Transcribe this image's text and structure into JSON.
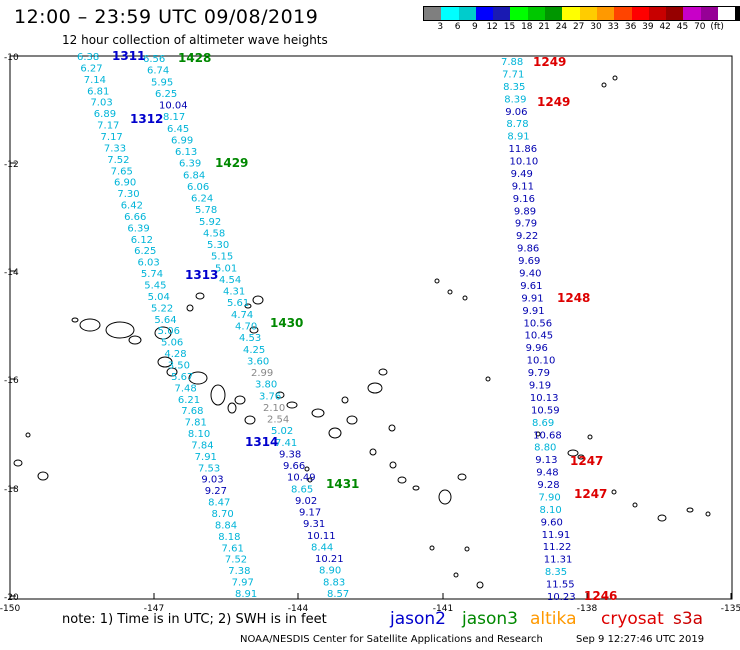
{
  "header": {
    "title": "12:00 – 23:59 UTC 09/08/2019",
    "subtitle": "12 hour collection of altimeter wave heights"
  },
  "scale": {
    "colors": [
      "#7f7f7f",
      "#00ffff",
      "#00cccc",
      "#0000ff",
      "#1a1ab2",
      "#00ff00",
      "#00c800",
      "#009600",
      "#ffff00",
      "#ffcc00",
      "#ff9900",
      "#ff4400",
      "#ff0000",
      "#c80000",
      "#960000",
      "#c800c8",
      "#960096",
      "#ffffff",
      "#000000"
    ],
    "labels": [
      "3",
      "6",
      "9",
      "12",
      "15",
      "18",
      "21",
      "24",
      "27",
      "30",
      "33",
      "36",
      "39",
      "42",
      "45",
      "70",
      "(ft)"
    ]
  },
  "map": {
    "lon_labels": [
      "-150",
      "-147",
      "-144",
      "-141",
      "-138",
      "-135"
    ],
    "lat_labels": [
      "-10",
      "-12",
      "-14",
      "-16",
      "-18",
      "-20"
    ]
  },
  "passes": [
    {
      "id": "1311",
      "sat": "jason2"
    },
    {
      "id": "1312",
      "sat": "jason2"
    },
    {
      "id": "1313",
      "sat": "jason2"
    },
    {
      "id": "1314",
      "sat": "jason2"
    },
    {
      "id": "1428",
      "sat": "jason3"
    },
    {
      "id": "1429",
      "sat": "jason3"
    },
    {
      "id": "1430",
      "sat": "jason3"
    },
    {
      "id": "1431",
      "sat": "jason3"
    },
    {
      "id": "1249",
      "sat": "cryosat"
    },
    {
      "id": "1248",
      "sat": "cryosat"
    },
    {
      "id": "1247",
      "sat": "cryosat"
    },
    {
      "id": "1246",
      "sat": "cryosat"
    }
  ],
  "tracks": {
    "a": [
      "6.38",
      "6.27",
      "7.14",
      "6.81",
      "7.03",
      "6.89",
      "7.17",
      "7.17",
      "7.33",
      "7.52",
      "7.65",
      "6.90",
      "7.30",
      "6.42",
      "6.66",
      "6.39",
      "6.12",
      "6.25",
      "6.03",
      "5.74",
      "5.45",
      "5.04",
      "5.22",
      "5.64",
      "5.06",
      "5.06",
      "4.28",
      "3.50",
      "5.67",
      "7.48",
      "6.21",
      "7.68",
      "7.81",
      "8.10",
      "7.84",
      "7.91",
      "7.53",
      "9.03",
      "9.27",
      "8.47",
      "8.70",
      "8.84",
      "8.18",
      "7.61",
      "7.52",
      "7.38",
      "7.97",
      "8.91"
    ],
    "b": [
      "6.56",
      "6.74",
      "5.95",
      "6.25",
      "10.04",
      "8.17",
      "6.45",
      "6.99",
      "6.13",
      "6.39",
      "6.84",
      "6.06",
      "6.24",
      "5.78",
      "5.92",
      "4.58",
      "5.30",
      "5.15",
      "5.01",
      "4.54",
      "4.31",
      "5.61",
      "4.74",
      "4.70",
      "4.53",
      "4.25",
      "3.60",
      "2.99",
      "3.80",
      "3.76",
      "2.10",
      "2.54",
      "5.02",
      "7.41",
      "9.38",
      "9.66",
      "10.49",
      "8.65",
      "9.02",
      "9.17",
      "9.31",
      "10.11",
      "8.44",
      "10.21",
      "8.90",
      "8.83",
      "8.57"
    ],
    "c": [
      "7.88",
      "7.71",
      "8.35",
      "8.39",
      "9.06",
      "8.78",
      "8.91",
      "11.86",
      "10.10",
      "9.49",
      "9.11",
      "9.16",
      "9.89",
      "9.79",
      "9.22",
      "9.86",
      "9.69",
      "9.40",
      "9.61",
      "9.91",
      "9.91",
      "10.56",
      "10.45",
      "9.96",
      "10.10",
      "9.79",
      "9.19",
      "10.13",
      "10.59",
      "8.69",
      "10.68",
      "8.80",
      "9.13",
      "9.48",
      "9.28",
      "7.90",
      "8.10",
      "9.60",
      "11.91",
      "11.22",
      "11.31",
      "8.35",
      "11.55",
      "10.23"
    ]
  },
  "labels": {
    "note": "note: 1) Time is in UTC; 2) SWH is in feet",
    "jason2": "jason2",
    "jason3": "jason3",
    "altika": "altika",
    "cryosat": "cryosat",
    "s3a": "s3a",
    "credit": "NOAA/NESDIS Center for Satellite Applications and Research",
    "credit_time": "Sep  9 12:27:46 UTC 2019"
  },
  "colors": {
    "jason2": "#0000cc",
    "jason3": "#008800",
    "altika": "#ff9900",
    "cryosat": "#dd0000",
    "s3a": "#cc0000",
    "light": "#00b4d8",
    "dark": "#0000b0",
    "gray": "#888888"
  }
}
